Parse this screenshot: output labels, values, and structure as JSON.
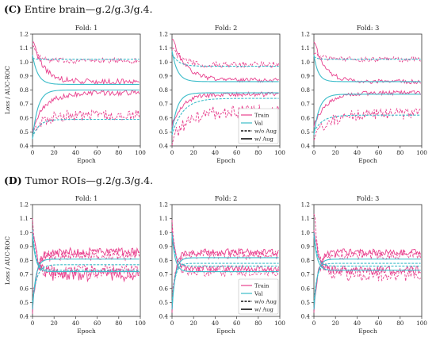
{
  "colors": {
    "train": "#e8418e",
    "val": "#3bbcc9"
  },
  "sections": [
    {
      "letter": "(C)",
      "title": "Entire brain—g.2/g.3/g.4.",
      "ylabel": "Loss / AUC-ROC",
      "xlabel": "Epoch",
      "ylim": [
        0.4,
        1.2
      ],
      "yticks": [
        "0.4",
        "0.5",
        "0.6",
        "0.7",
        "0.8",
        "0.9",
        "1.0",
        "1.1",
        "1.2"
      ],
      "xticks": [
        "0",
        "20",
        "40",
        "60",
        "80",
        "100"
      ],
      "folds": [
        {
          "title": "Fold: 1"
        },
        {
          "title": "Fold: 2"
        },
        {
          "title": "Fold: 3"
        }
      ]
    },
    {
      "letter": "(D)",
      "title": "Tumor ROIs—g.2/g.3/g.4.",
      "ylabel": "Loss / AUC-ROC",
      "xlabel": "Epoch",
      "ylim": [
        0.4,
        1.2
      ],
      "yticks": [
        "0.4",
        "0.5",
        "0.6",
        "0.7",
        "0.8",
        "0.9",
        "1.0",
        "1.1",
        "1.2"
      ],
      "xticks": [
        "0",
        "20",
        "40",
        "60",
        "80",
        "100"
      ],
      "folds": [
        {
          "title": "Fold: 1"
        },
        {
          "title": "Fold: 2"
        },
        {
          "title": "Fold: 3"
        }
      ]
    }
  ],
  "legend": {
    "train": "Train",
    "val": "Val",
    "wo_aug": "w/o Aug",
    "w_aug": "w/ Aug"
  },
  "chart_data": [
    {
      "type": "line",
      "panel": "C",
      "fold": "Fold: 1",
      "xlabel": "Epoch",
      "ylabel": "Loss / AUC-ROC",
      "xlim": [
        0,
        100
      ],
      "ylim": [
        0.4,
        1.2
      ],
      "series": [
        {
          "name": "Train w/o Aug loss",
          "curve": {
            "start": 1.14,
            "end": 1.01,
            "tau": 4,
            "noise": 0.012
          }
        },
        {
          "name": "Train w/ Aug loss",
          "curve": {
            "start": 1.16,
            "end": 0.86,
            "tau": 10,
            "noise": 0.012
          }
        },
        {
          "name": "Train w/ Aug AUC",
          "curve": {
            "start": 0.52,
            "end": 0.78,
            "tau": 12,
            "noise": 0.012
          }
        },
        {
          "name": "Train w/o Aug AUC",
          "curve": {
            "start": 0.5,
            "end": 0.62,
            "tau": 10,
            "noise": 0.025
          }
        },
        {
          "name": "Val w/o Aug loss",
          "curve": {
            "start": 1.03,
            "end": 1.02,
            "tau": 2,
            "noise": 0
          }
        },
        {
          "name": "Val w/ Aug loss",
          "curve": {
            "start": 1.05,
            "end": 0.84,
            "tau": 5,
            "noise": 0
          }
        },
        {
          "name": "Val w/ Aug AUC",
          "curve": {
            "start": 0.45,
            "end": 0.8,
            "tau": 5,
            "noise": 0
          }
        },
        {
          "name": "Val w/o Aug AUC",
          "curve": {
            "start": 0.46,
            "end": 0.59,
            "tau": 6,
            "noise": 0
          }
        }
      ]
    },
    {
      "type": "line",
      "panel": "C",
      "fold": "Fold: 2",
      "xlabel": "Epoch",
      "ylabel": "Loss / AUC-ROC",
      "xlim": [
        0,
        100
      ],
      "ylim": [
        0.4,
        1.2
      ],
      "series": [
        {
          "name": "Train w/o Aug loss",
          "curve": {
            "start": 1.12,
            "end": 0.98,
            "tau": 8,
            "noise": 0.015
          }
        },
        {
          "name": "Train w/ Aug loss",
          "curve": {
            "start": 1.18,
            "end": 0.87,
            "tau": 12,
            "noise": 0.01
          }
        },
        {
          "name": "Train w/ Aug AUC",
          "curve": {
            "start": 0.55,
            "end": 0.77,
            "tau": 10,
            "noise": 0.01
          }
        },
        {
          "name": "Train w/o Aug AUC",
          "curve": {
            "start": 0.45,
            "end": 0.65,
            "tau": 15,
            "noise": 0.03
          }
        },
        {
          "name": "Val w/o Aug loss",
          "curve": {
            "start": 1.06,
            "end": 0.97,
            "tau": 6,
            "noise": 0
          }
        },
        {
          "name": "Val w/ Aug loss",
          "curve": {
            "start": 1.08,
            "end": 0.86,
            "tau": 5,
            "noise": 0
          }
        },
        {
          "name": "Val w/ Aug AUC",
          "curve": {
            "start": 0.5,
            "end": 0.78,
            "tau": 5,
            "noise": 0
          }
        },
        {
          "name": "Val w/o Aug AUC",
          "curve": {
            "start": 0.48,
            "end": 0.74,
            "tau": 10,
            "noise": 0
          }
        }
      ]
    },
    {
      "type": "line",
      "panel": "C",
      "fold": "Fold: 3",
      "xlabel": "Epoch",
      "ylabel": "Loss / AUC-ROC",
      "xlim": [
        0,
        100
      ],
      "ylim": [
        0.4,
        1.2
      ],
      "series": [
        {
          "name": "Train w/o Aug loss",
          "curve": {
            "start": 1.08,
            "end": 1.02,
            "tau": 6,
            "noise": 0.012
          }
        },
        {
          "name": "Train w/ Aug loss",
          "curve": {
            "start": 1.16,
            "end": 0.86,
            "tau": 10,
            "noise": 0.01
          }
        },
        {
          "name": "Train w/ Aug AUC",
          "curve": {
            "start": 0.55,
            "end": 0.78,
            "tau": 12,
            "noise": 0.01
          }
        },
        {
          "name": "Train w/o Aug AUC",
          "curve": {
            "start": 0.48,
            "end": 0.63,
            "tau": 15,
            "noise": 0.025
          }
        },
        {
          "name": "Val w/o Aug loss",
          "curve": {
            "start": 1.04,
            "end": 1.02,
            "tau": 3,
            "noise": 0
          }
        },
        {
          "name": "Val w/ Aug loss",
          "curve": {
            "start": 1.05,
            "end": 0.86,
            "tau": 4,
            "noise": 0
          }
        },
        {
          "name": "Val w/ Aug AUC",
          "curve": {
            "start": 0.48,
            "end": 0.77,
            "tau": 5,
            "noise": 0
          }
        },
        {
          "name": "Val w/o Aug AUC",
          "curve": {
            "start": 0.5,
            "end": 0.62,
            "tau": 8,
            "noise": 0
          }
        }
      ]
    },
    {
      "type": "line",
      "panel": "D",
      "fold": "Fold: 1",
      "xlabel": "Epoch",
      "ylabel": "Loss / AUC-ROC",
      "xlim": [
        0,
        100
      ],
      "ylim": [
        0.4,
        1.2
      ],
      "series": [
        {
          "name": "Train w/o Aug loss",
          "curve": {
            "start": 1.15,
            "end": 0.72,
            "tau": 3,
            "noise": 0.03
          }
        },
        {
          "name": "Train w/ Aug loss",
          "curve": {
            "start": 1.05,
            "end": 0.7,
            "tau": 4,
            "noise": 0.03
          }
        },
        {
          "name": "Train w/ Aug AUC",
          "curve": {
            "start": 0.45,
            "end": 0.86,
            "tau": 4,
            "noise": 0.02
          }
        },
        {
          "name": "Train w/o Aug AUC",
          "curve": {
            "start": 0.48,
            "end": 0.84,
            "tau": 4,
            "noise": 0.025
          }
        },
        {
          "name": "Val w/o Aug loss",
          "curve": {
            "start": 1.02,
            "end": 0.73,
            "tau": 3,
            "noise": 0
          }
        },
        {
          "name": "Val w/ Aug loss",
          "curve": {
            "start": 0.98,
            "end": 0.72,
            "tau": 3,
            "noise": 0
          }
        },
        {
          "name": "Val w/ Aug AUC",
          "curve": {
            "start": 0.45,
            "end": 0.81,
            "tau": 3,
            "noise": 0
          }
        },
        {
          "name": "Val w/o Aug AUC",
          "curve": {
            "start": 0.5,
            "end": 0.77,
            "tau": 4,
            "noise": 0
          }
        }
      ]
    },
    {
      "type": "line",
      "panel": "D",
      "fold": "Fold: 2",
      "xlabel": "Epoch",
      "ylabel": "Loss / AUC-ROC",
      "xlim": [
        0,
        100
      ],
      "ylim": [
        0.4,
        1.2
      ],
      "series": [
        {
          "name": "Train w/o Aug loss",
          "curve": {
            "start": 1.12,
            "end": 0.72,
            "tau": 3,
            "noise": 0.02
          }
        },
        {
          "name": "Train w/ Aug loss",
          "curve": {
            "start": 1.05,
            "end": 0.74,
            "tau": 3,
            "noise": 0.015
          }
        },
        {
          "name": "Train w/ Aug AUC",
          "curve": {
            "start": 0.45,
            "end": 0.86,
            "tau": 3,
            "noise": 0.015
          }
        },
        {
          "name": "Train w/o Aug AUC",
          "curve": {
            "start": 0.5,
            "end": 0.84,
            "tau": 3,
            "noise": 0.02
          }
        },
        {
          "name": "Val w/o Aug loss",
          "curve": {
            "start": 1.0,
            "end": 0.76,
            "tau": 3,
            "noise": 0
          }
        },
        {
          "name": "Val w/ Aug loss",
          "curve": {
            "start": 0.98,
            "end": 0.72,
            "tau": 3,
            "noise": 0
          }
        },
        {
          "name": "Val w/ Aug AUC",
          "curve": {
            "start": 0.45,
            "end": 0.82,
            "tau": 3,
            "noise": 0
          }
        },
        {
          "name": "Val w/o Aug AUC",
          "curve": {
            "start": 0.5,
            "end": 0.78,
            "tau": 3,
            "noise": 0
          }
        }
      ]
    },
    {
      "type": "line",
      "panel": "D",
      "fold": "Fold: 3",
      "xlabel": "Epoch",
      "ylabel": "Loss / AUC-ROC",
      "xlim": [
        0,
        100
      ],
      "ylim": [
        0.4,
        1.2
      ],
      "series": [
        {
          "name": "Train w/o Aug loss",
          "curve": {
            "start": 1.18,
            "end": 0.7,
            "tau": 4,
            "noise": 0.03
          }
        },
        {
          "name": "Train w/ Aug loss",
          "curve": {
            "start": 1.05,
            "end": 0.73,
            "tau": 4,
            "noise": 0.02
          }
        },
        {
          "name": "Train w/ Aug AUC",
          "curve": {
            "start": 0.45,
            "end": 0.86,
            "tau": 4,
            "noise": 0.015
          }
        },
        {
          "name": "Train w/o Aug AUC",
          "curve": {
            "start": 0.48,
            "end": 0.84,
            "tau": 4,
            "noise": 0.02
          }
        },
        {
          "name": "Val w/o Aug loss",
          "curve": {
            "start": 1.0,
            "end": 0.76,
            "tau": 3,
            "noise": 0
          }
        },
        {
          "name": "Val w/ Aug loss",
          "curve": {
            "start": 0.98,
            "end": 0.73,
            "tau": 3,
            "noise": 0
          }
        },
        {
          "name": "Val w/ Aug AUC",
          "curve": {
            "start": 0.45,
            "end": 0.81,
            "tau": 3,
            "noise": 0
          }
        },
        {
          "name": "Val w/o Aug AUC",
          "curve": {
            "start": 0.5,
            "end": 0.78,
            "tau": 3,
            "noise": 0
          }
        }
      ]
    }
  ]
}
